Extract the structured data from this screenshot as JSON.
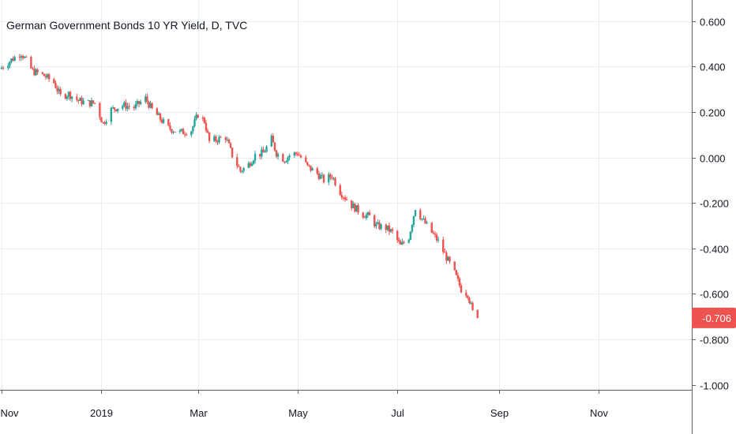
{
  "chart_data": {
    "type": "candlestick",
    "title": "German Government Bonds 10 YR Yield, D, TVC",
    "xlabel": "",
    "ylabel": "",
    "ylim": [
      -1.0,
      0.7
    ],
    "y_ticks": [
      0.6,
      0.4,
      0.2,
      0.0,
      -0.2,
      -0.4,
      -0.6,
      -0.8,
      -1.0
    ],
    "y_tick_labels": [
      "0.600",
      "0.400",
      "0.200",
      "0.000",
      "-0.200",
      "-0.400",
      "-0.600",
      "-0.800",
      "-1.000"
    ],
    "x_tick_labels": [
      "Nov",
      "2019",
      "Mar",
      "May",
      "Jul",
      "Sep",
      "Nov"
    ],
    "x_tick_dates": [
      "2018-11-01",
      "2019-01-01",
      "2019-03-01",
      "2019-05-01",
      "2019-07-01",
      "2019-09-01",
      "2019-11-01"
    ],
    "x_range": [
      "2018-10-31",
      "2019-12-28"
    ],
    "last_value": -0.706,
    "last_value_label": "-0.706",
    "grid": true,
    "colors": {
      "up": "#26a69a",
      "down": "#ef5350",
      "grid": "#e9eef5",
      "axis": "#5d606b",
      "badge": "#ef5350"
    },
    "series": [
      {
        "date": "2018-10-31",
        "value": 0.39
      },
      {
        "date": "2018-11-07",
        "value": 0.43
      },
      {
        "date": "2018-11-13",
        "value": 0.46
      },
      {
        "date": "2018-11-20",
        "value": 0.38
      },
      {
        "date": "2018-11-27",
        "value": 0.36
      },
      {
        "date": "2018-12-03",
        "value": 0.33
      },
      {
        "date": "2018-12-07",
        "value": 0.27
      },
      {
        "date": "2018-12-12",
        "value": 0.28
      },
      {
        "date": "2018-12-18",
        "value": 0.25
      },
      {
        "date": "2018-12-24",
        "value": 0.24
      },
      {
        "date": "2018-12-28",
        "value": 0.24
      },
      {
        "date": "2019-01-02",
        "value": 0.15
      },
      {
        "date": "2019-01-07",
        "value": 0.21
      },
      {
        "date": "2019-01-14",
        "value": 0.23
      },
      {
        "date": "2019-01-21",
        "value": 0.22
      },
      {
        "date": "2019-01-28",
        "value": 0.26
      },
      {
        "date": "2019-02-01",
        "value": 0.21
      },
      {
        "date": "2019-02-06",
        "value": 0.17
      },
      {
        "date": "2019-02-11",
        "value": 0.13
      },
      {
        "date": "2019-02-18",
        "value": 0.11
      },
      {
        "date": "2019-02-25",
        "value": 0.12
      },
      {
        "date": "2019-03-01",
        "value": 0.19
      },
      {
        "date": "2019-03-05",
        "value": 0.16
      },
      {
        "date": "2019-03-08",
        "value": 0.07
      },
      {
        "date": "2019-03-13",
        "value": 0.08
      },
      {
        "date": "2019-03-18",
        "value": 0.09
      },
      {
        "date": "2019-03-22",
        "value": 0.01
      },
      {
        "date": "2019-03-27",
        "value": -0.06
      },
      {
        "date": "2019-04-01",
        "value": -0.03
      },
      {
        "date": "2019-04-05",
        "value": 0.01
      },
      {
        "date": "2019-04-10",
        "value": 0.02
      },
      {
        "date": "2019-04-15",
        "value": 0.08
      },
      {
        "date": "2019-04-18",
        "value": 0.02
      },
      {
        "date": "2019-04-23",
        "value": -0.01
      },
      {
        "date": "2019-04-26",
        "value": 0.01
      },
      {
        "date": "2019-05-01",
        "value": 0.02
      },
      {
        "date": "2019-05-07",
        "value": -0.04
      },
      {
        "date": "2019-05-13",
        "value": -0.07
      },
      {
        "date": "2019-05-17",
        "value": -0.1
      },
      {
        "date": "2019-05-22",
        "value": -0.08
      },
      {
        "date": "2019-05-27",
        "value": -0.15
      },
      {
        "date": "2019-06-03",
        "value": -0.21
      },
      {
        "date": "2019-06-10",
        "value": -0.25
      },
      {
        "date": "2019-06-14",
        "value": -0.26
      },
      {
        "date": "2019-06-18",
        "value": -0.3
      },
      {
        "date": "2019-06-24",
        "value": -0.31
      },
      {
        "date": "2019-06-28",
        "value": -0.33
      },
      {
        "date": "2019-07-03",
        "value": -0.39
      },
      {
        "date": "2019-07-08",
        "value": -0.35
      },
      {
        "date": "2019-07-12",
        "value": -0.22
      },
      {
        "date": "2019-07-16",
        "value": -0.27
      },
      {
        "date": "2019-07-22",
        "value": -0.33
      },
      {
        "date": "2019-07-26",
        "value": -0.37
      },
      {
        "date": "2019-07-31",
        "value": -0.44
      },
      {
        "date": "2019-08-05",
        "value": -0.51
      },
      {
        "date": "2019-08-09",
        "value": -0.58
      },
      {
        "date": "2019-08-13",
        "value": -0.6
      },
      {
        "date": "2019-08-16",
        "value": -0.68
      },
      {
        "date": "2019-08-19",
        "value": -0.706
      }
    ]
  }
}
